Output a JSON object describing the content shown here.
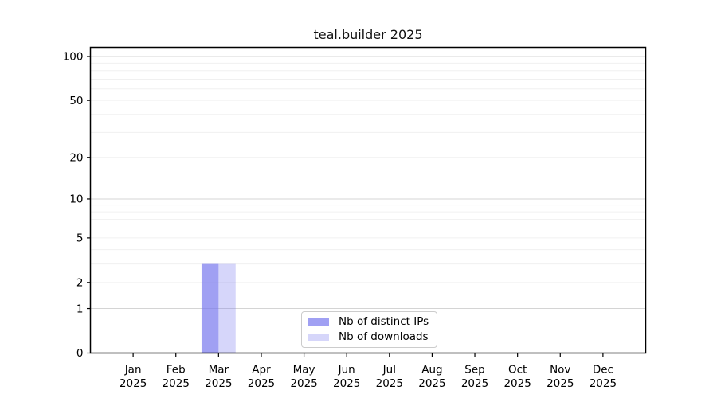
{
  "figure": {
    "title": "teal.builder 2025"
  },
  "chart_data": {
    "type": "bar",
    "title": "teal.builder 2025",
    "xlabel": "",
    "ylabel": "",
    "yscale": "log1p",
    "ylim": [
      0,
      115
    ],
    "grid": "horizontal",
    "legend_position": "lower center",
    "x_ticks": [
      {
        "month": "Jan",
        "year": "2025"
      },
      {
        "month": "Feb",
        "year": "2025"
      },
      {
        "month": "Mar",
        "year": "2025"
      },
      {
        "month": "Apr",
        "year": "2025"
      },
      {
        "month": "May",
        "year": "2025"
      },
      {
        "month": "Jun",
        "year": "2025"
      },
      {
        "month": "Jul",
        "year": "2025"
      },
      {
        "month": "Aug",
        "year": "2025"
      },
      {
        "month": "Sep",
        "year": "2025"
      },
      {
        "month": "Oct",
        "year": "2025"
      },
      {
        "month": "Nov",
        "year": "2025"
      },
      {
        "month": "Dec",
        "year": "2025"
      }
    ],
    "y_tick_values": [
      0,
      1,
      2,
      5,
      10,
      20,
      50,
      100
    ],
    "grid_major_values": [
      1,
      10,
      100
    ],
    "grid_minor_values": [
      2,
      3,
      4,
      5,
      6,
      7,
      8,
      9,
      20,
      30,
      40,
      50,
      60,
      70,
      80,
      90
    ],
    "series": [
      {
        "name": "Nb of distinct IPs",
        "color": "#7777ee",
        "alpha": 0.7,
        "fill": "rgba(119,119,238,0.7)",
        "values": [
          0,
          0,
          3,
          0,
          0,
          0,
          0,
          0,
          0,
          0,
          0,
          0
        ]
      },
      {
        "name": "Nb of downloads",
        "color": "#7777ee",
        "alpha": 0.3,
        "fill": "rgba(119,119,238,0.3)",
        "values": [
          0,
          0,
          3,
          0,
          0,
          0,
          0,
          0,
          0,
          0,
          0,
          0
        ]
      }
    ],
    "colors": {
      "grid_major": "#d4d4d4",
      "grid_minor": "#f0f0f0",
      "axis": "#000000",
      "text": "#000000"
    }
  }
}
